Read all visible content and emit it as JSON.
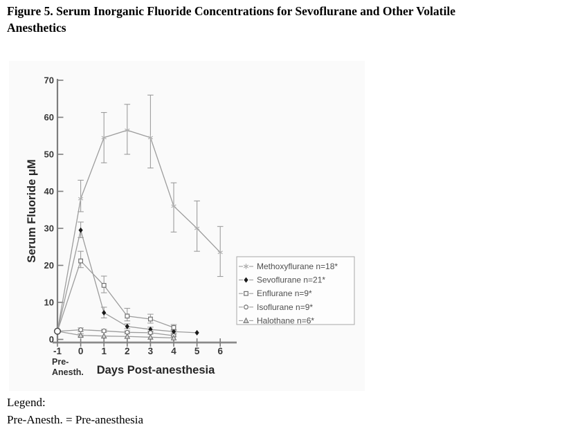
{
  "page": {
    "title_line1": "Figure 5. Serum Inorganic Fluoride Concentrations for Sevoflurane and Other Volatile",
    "title_line2": "Anesthetics",
    "footer_legend_heading": "Legend:",
    "footer_legend_definition": "Pre-Anesth. = Pre-anesthesia"
  },
  "chart_data": {
    "type": "line",
    "title": "Serum Inorganic Fluoride Concentrations for Sevoflurane and Other Volatile Anesthetics",
    "xlabel": "Days Post-anesthesia",
    "ylabel": "Serum Fluoride μM",
    "ylim": [
      0,
      70
    ],
    "yticks": [
      0,
      10,
      20,
      30,
      40,
      50,
      60,
      70
    ],
    "xticks": [
      -1,
      0,
      1,
      2,
      3,
      4,
      5,
      6
    ],
    "x_special_tick_label": [
      "Pre-",
      "Anesth."
    ],
    "grid": false,
    "legend_position": "right",
    "axis_color": "#7d7d7d",
    "baseline_color": "#8a8a8a",
    "pre_anesthesia_point": {
      "x": -1,
      "y": 2.2
    },
    "series": [
      {
        "id": "methoxyflurane",
        "label": "Methoxyflurane n=18*",
        "marker": "star",
        "line_color": "#9c9c9c",
        "marker_color": "#b0b0b0",
        "points": [
          {
            "x": -1,
            "y": 2.3
          },
          {
            "x": 0,
            "y": 38,
            "lo": 34.5,
            "hi": 43
          },
          {
            "x": 1,
            "y": 54.5,
            "lo": 47.7,
            "hi": 61.3
          },
          {
            "x": 2,
            "y": 56.5,
            "lo": 50,
            "hi": 63.5
          },
          {
            "x": 3,
            "y": 54.5,
            "lo": 46.3,
            "hi": 66
          },
          {
            "x": 4,
            "y": 36,
            "lo": 29,
            "hi": 42.3
          },
          {
            "x": 5,
            "y": 30,
            "lo": 23.8,
            "hi": 37.4
          },
          {
            "x": 6,
            "y": 23.5,
            "lo": 17,
            "hi": 30.5
          }
        ]
      },
      {
        "id": "sevoflurane",
        "label": "Sevoflurane n=21*",
        "marker": "diamond",
        "line_color": "#9c9c9c",
        "marker_color": "#1a1a1a",
        "points": [
          {
            "x": -1,
            "y": 2.2
          },
          {
            "x": 0,
            "y": 29.5,
            "lo": 27.5,
            "hi": 31.7
          },
          {
            "x": 1,
            "y": 7.2,
            "lo": 5.8,
            "hi": 8.7
          },
          {
            "x": 2,
            "y": 3.5,
            "lo": 2.9,
            "hi": 4.2
          },
          {
            "x": 3,
            "y": 2.7,
            "lo": 2.2,
            "hi": 3.3
          },
          {
            "x": 4,
            "y": 2.1,
            "lo": 1.7,
            "hi": 2.6
          },
          {
            "x": 5,
            "y": 1.8
          }
        ]
      },
      {
        "id": "enflurane",
        "label": "Enflurane n=9*",
        "marker": "square",
        "line_color": "#9c9c9c",
        "marker_color": "#6f6f6f",
        "points": [
          {
            "x": -1,
            "y": 2.2
          },
          {
            "x": 0,
            "y": 21.2,
            "lo": 19.4,
            "hi": 23.8
          },
          {
            "x": 1,
            "y": 14.6,
            "lo": 12.6,
            "hi": 17.1
          },
          {
            "x": 2,
            "y": 6.3,
            "lo": 5,
            "hi": 8.4
          },
          {
            "x": 3,
            "y": 5.5,
            "lo": 4.4,
            "hi": 6.8
          },
          {
            "x": 4,
            "y": 3.2,
            "lo": 2.4,
            "hi": 4
          }
        ]
      },
      {
        "id": "isoflurane",
        "label": "Isoflurane n=9*",
        "marker": "circle",
        "line_color": "#9c9c9c",
        "marker_color": "#6f6f6f",
        "points": [
          {
            "x": -1,
            "y": 2.2
          },
          {
            "x": 0,
            "y": 2.6,
            "lo": 2.1,
            "hi": 3.1
          },
          {
            "x": 1,
            "y": 2.3,
            "lo": 1.9,
            "hi": 2.7
          },
          {
            "x": 2,
            "y": 1.9,
            "lo": 1.5,
            "hi": 2.3
          },
          {
            "x": 3,
            "y": 1.8,
            "lo": 1.4,
            "hi": 2.2
          },
          {
            "x": 4,
            "y": 1.0,
            "lo": 0.7,
            "hi": 1.4
          }
        ]
      },
      {
        "id": "halothane",
        "label": "Halothane n=6*",
        "marker": "triangle",
        "line_color": "#9c9c9c",
        "marker_color": "#6f6f6f",
        "points": [
          {
            "x": -1,
            "y": 2.2
          },
          {
            "x": 0,
            "y": 1.1,
            "lo": 0.8,
            "hi": 1.5
          },
          {
            "x": 1,
            "y": 0.9
          },
          {
            "x": 2,
            "y": 0.8
          },
          {
            "x": 3,
            "y": 0.6
          },
          {
            "x": 4,
            "y": 0.4
          }
        ]
      }
    ]
  }
}
